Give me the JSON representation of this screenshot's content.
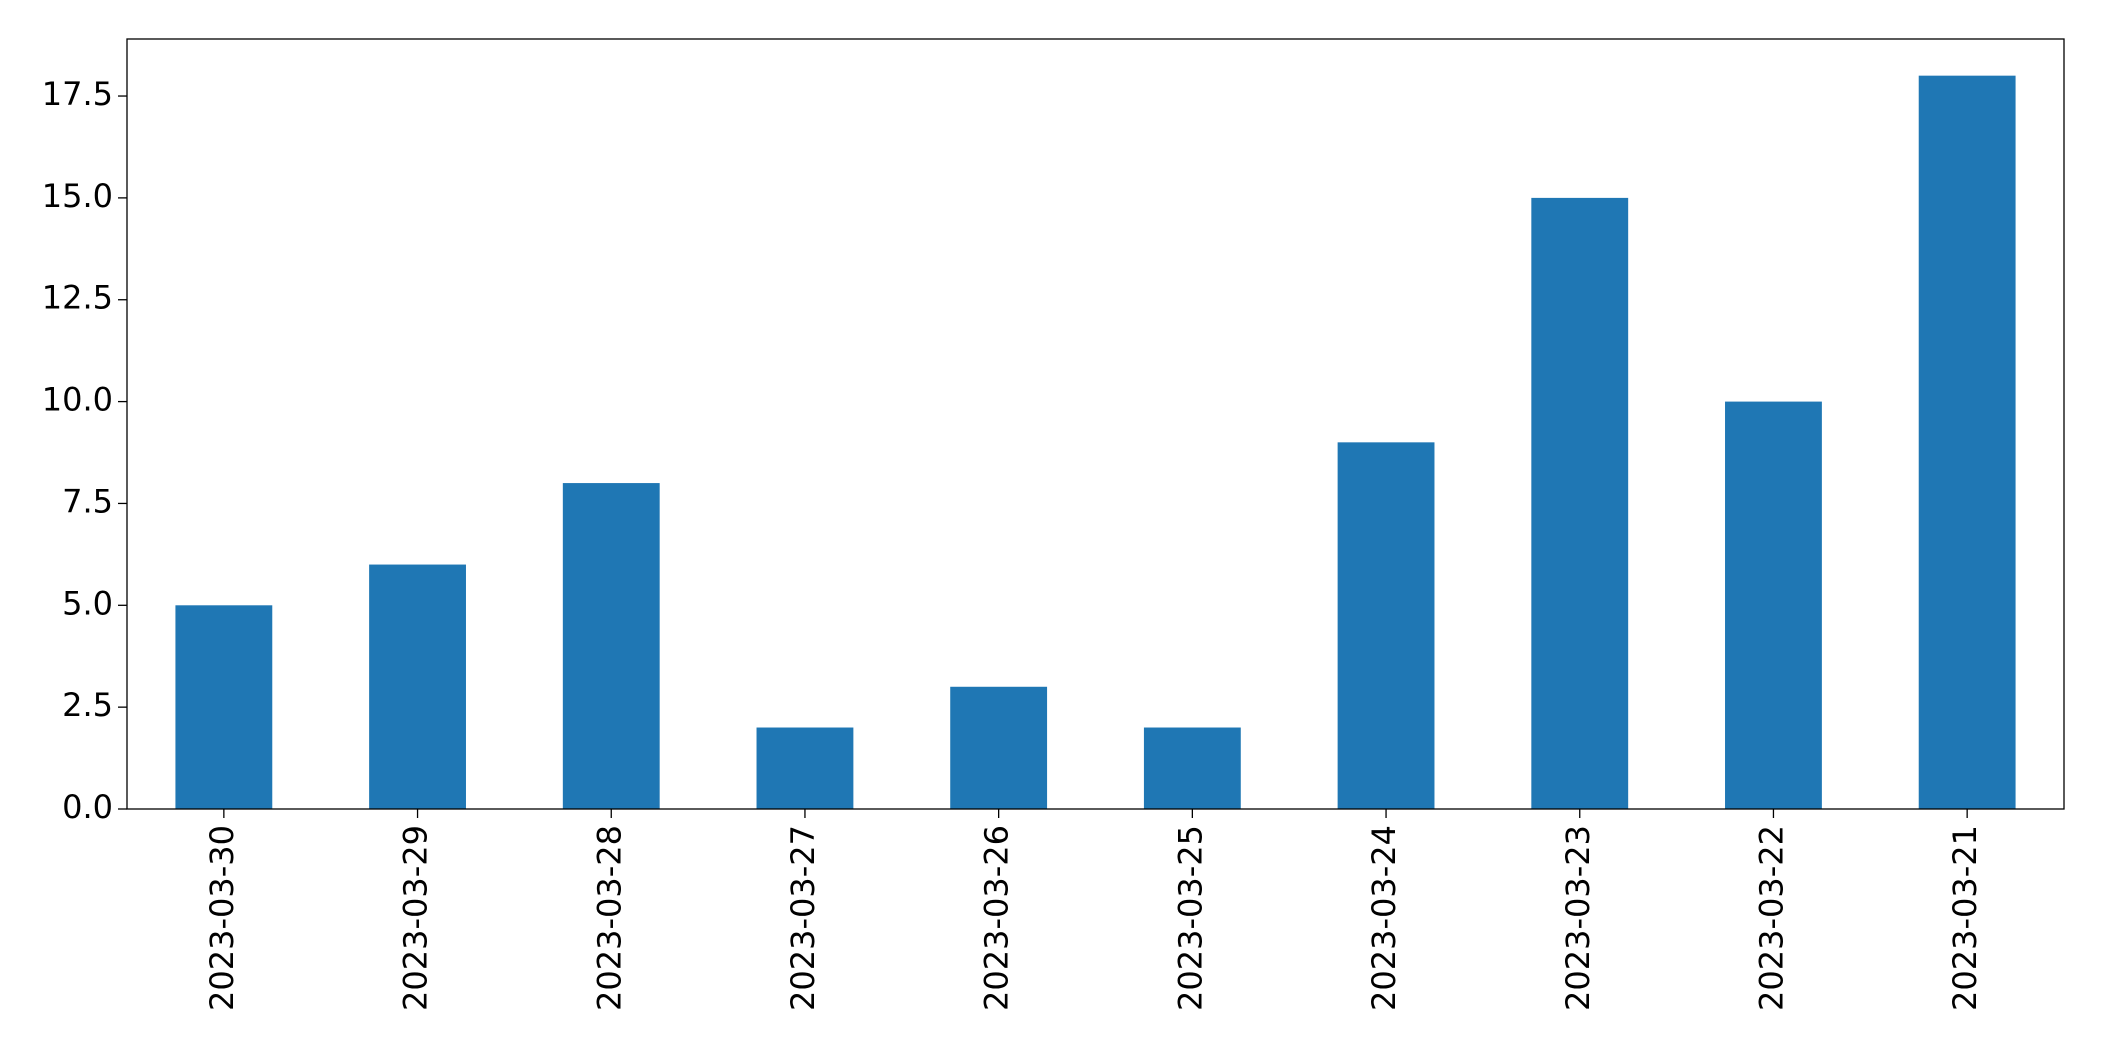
{
  "chart_data": {
    "type": "bar",
    "categories": [
      "2023-03-30",
      "2023-03-29",
      "2023-03-28",
      "2023-03-27",
      "2023-03-26",
      "2023-03-25",
      "2023-03-24",
      "2023-03-23",
      "2023-03-22",
      "2023-03-21"
    ],
    "values": [
      5,
      6,
      8,
      2,
      3,
      2,
      9,
      15,
      10,
      18
    ],
    "color": "#1f77b4",
    "ylim": [
      0,
      18.9
    ],
    "yticks": [
      {
        "value": 0,
        "label": "0.0"
      },
      2.5,
      {
        "value": 5,
        "label": "5.0"
      },
      7.5,
      {
        "value": 10,
        "label": "10.0"
      },
      12.5,
      {
        "value": 15,
        "label": "15.0"
      },
      17.5
    ],
    "grid": false
  }
}
